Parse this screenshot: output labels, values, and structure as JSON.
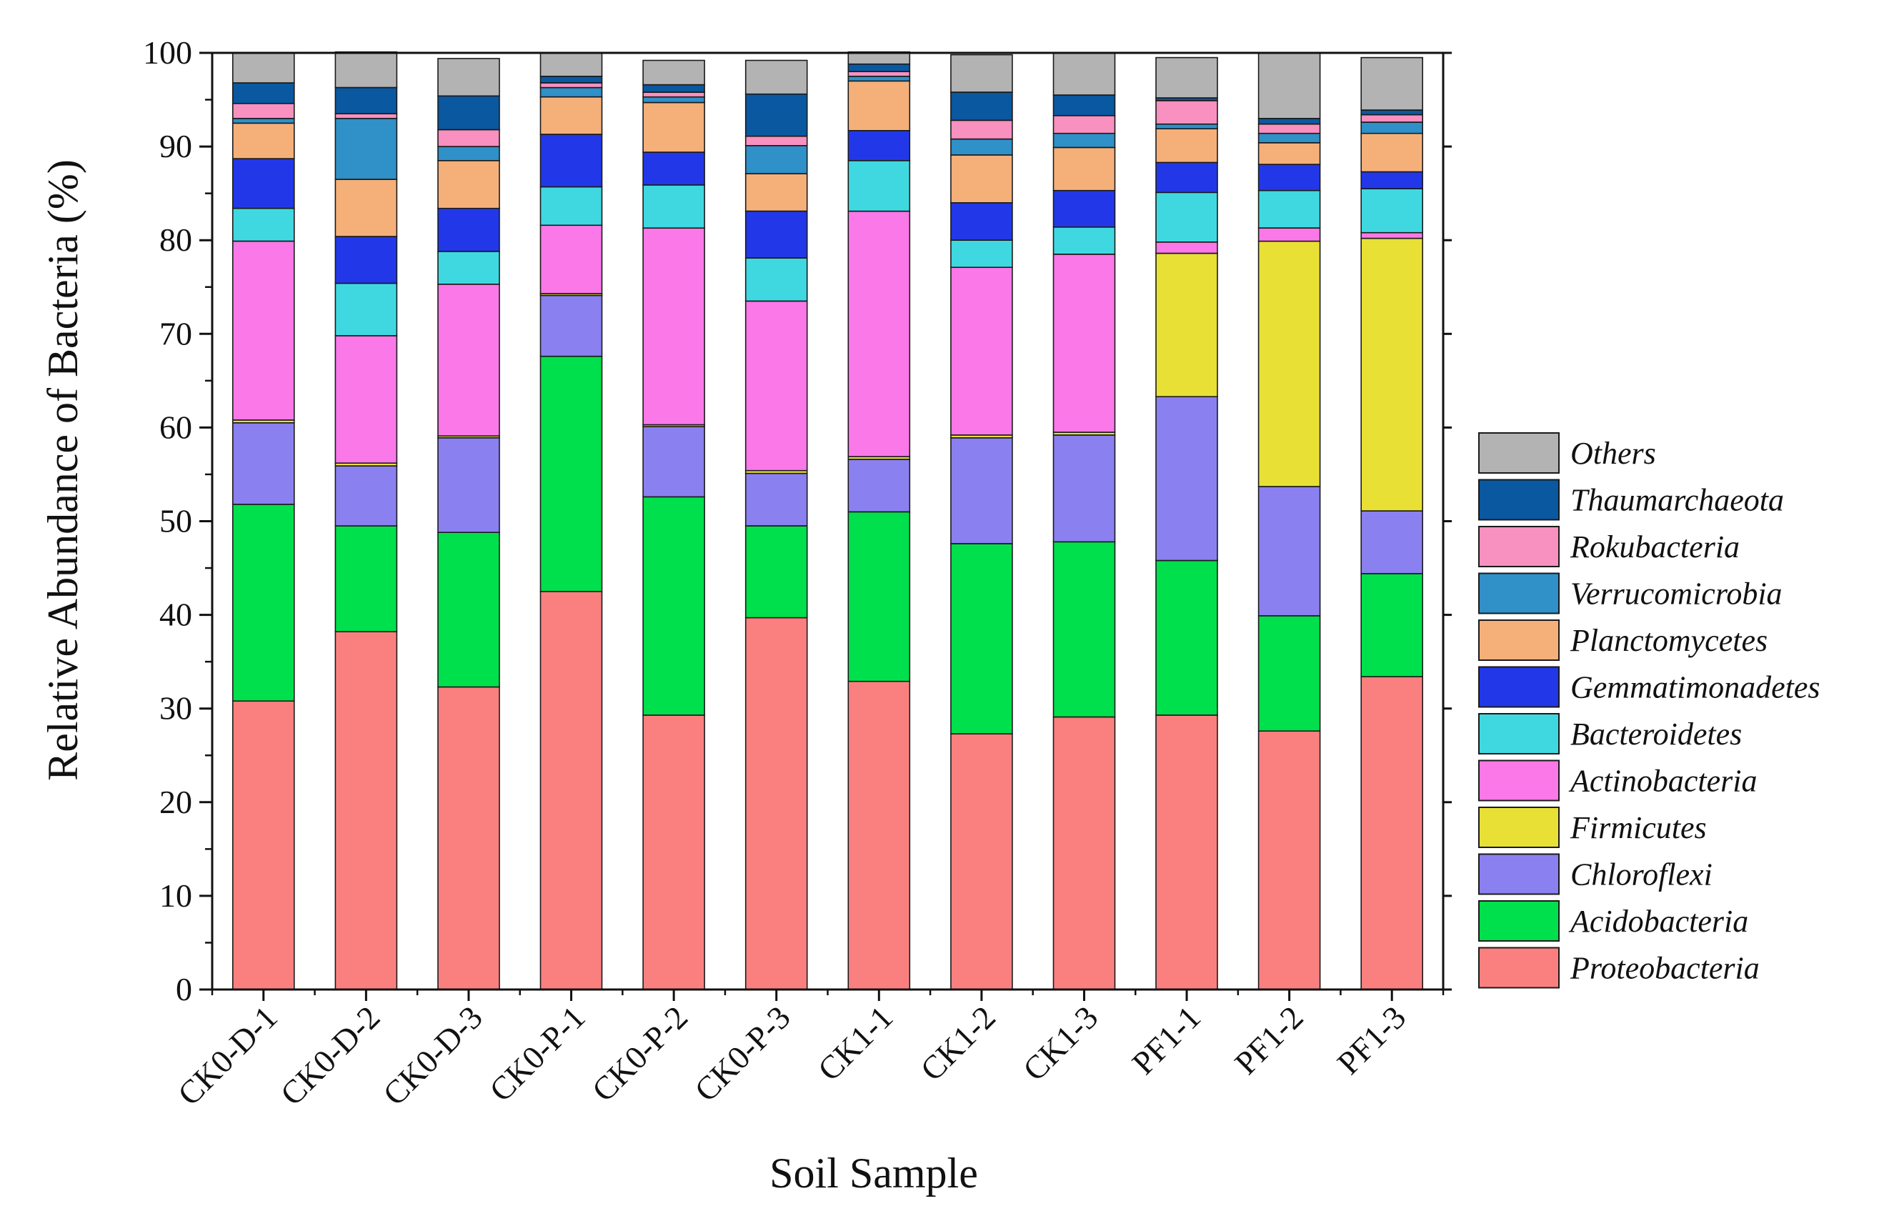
{
  "chart_data": {
    "type": "bar",
    "stacked": true,
    "xlabel": "Soil Sample",
    "ylabel": "Relative Abundance of Bacteria (%)",
    "ylim": [
      0,
      100
    ],
    "yticks": [
      0,
      10,
      20,
      30,
      40,
      50,
      60,
      70,
      80,
      90,
      100
    ],
    "legend_position": "right",
    "categories": [
      "CK0-D-1",
      "CK0-D-2",
      "CK0-D-3",
      "CK0-P-1",
      "CK0-P-2",
      "CK0-P-3",
      "CK1-1",
      "CK1-2",
      "CK1-3",
      "PF1-1",
      "PF1-2",
      "PF1-3"
    ],
    "series": [
      {
        "name": "Proteobacteria",
        "color": "#fa8080",
        "values": [
          30.8,
          38.2,
          32.3,
          42.5,
          29.3,
          39.7,
          32.9,
          27.3,
          29.1,
          29.3,
          27.6,
          33.4
        ]
      },
      {
        "name": "Acidobacteria",
        "color": "#00e04c",
        "values": [
          21.0,
          11.3,
          16.5,
          25.1,
          23.3,
          9.8,
          18.1,
          20.3,
          18.7,
          16.5,
          12.3,
          11.0
        ]
      },
      {
        "name": "Chloroflexi",
        "color": "#8b80f0",
        "values": [
          8.7,
          6.4,
          10.1,
          6.5,
          7.5,
          5.6,
          5.6,
          11.3,
          11.4,
          17.5,
          13.8,
          6.7
        ]
      },
      {
        "name": "Firmicutes",
        "color": "#e8e035",
        "values": [
          0.3,
          0.3,
          0.2,
          0.2,
          0.2,
          0.3,
          0.3,
          0.3,
          0.3,
          15.3,
          26.2,
          29.1
        ]
      },
      {
        "name": "Actinobacteria",
        "color": "#fa78e8",
        "values": [
          19.1,
          13.6,
          16.2,
          7.3,
          21.0,
          18.1,
          26.2,
          17.9,
          19.0,
          1.2,
          1.4,
          0.6
        ]
      },
      {
        "name": "Bacteroidetes",
        "color": "#40d8e0",
        "values": [
          3.5,
          5.6,
          3.5,
          4.1,
          4.6,
          4.6,
          5.4,
          2.9,
          2.9,
          5.3,
          4.0,
          4.7
        ]
      },
      {
        "name": "Gemmatimonadetes",
        "color": "#2238e8",
        "values": [
          5.3,
          5.0,
          4.6,
          5.6,
          3.5,
          5.0,
          3.2,
          4.0,
          3.9,
          3.2,
          2.8,
          1.8
        ]
      },
      {
        "name": "Planctomycetes",
        "color": "#f5b07a",
        "values": [
          3.8,
          6.1,
          5.1,
          4.0,
          5.3,
          4.0,
          5.3,
          5.1,
          4.6,
          3.6,
          2.3,
          4.1
        ]
      },
      {
        "name": "Verrucomicrobia",
        "color": "#3090c8",
        "values": [
          0.5,
          6.5,
          1.5,
          1.0,
          0.6,
          3.0,
          0.5,
          1.7,
          1.5,
          0.5,
          1.0,
          1.2
        ]
      },
      {
        "name": "Rokubacteria",
        "color": "#f890c0",
        "values": [
          1.6,
          0.5,
          1.8,
          0.5,
          0.5,
          1.0,
          0.5,
          2.0,
          1.9,
          2.5,
          1.0,
          0.8
        ]
      },
      {
        "name": "Thaumarchaeota",
        "color": "#0a58a0",
        "values": [
          2.2,
          2.8,
          3.6,
          0.7,
          0.8,
          4.5,
          0.8,
          3.0,
          2.2,
          0.3,
          0.6,
          0.5
        ]
      },
      {
        "name": "Others",
        "color": "#b3b3b3",
        "values": [
          3.2,
          3.8,
          4.0,
          2.5,
          2.6,
          3.6,
          1.3,
          4.0,
          4.5,
          4.3,
          7.0,
          5.6
        ]
      }
    ]
  }
}
